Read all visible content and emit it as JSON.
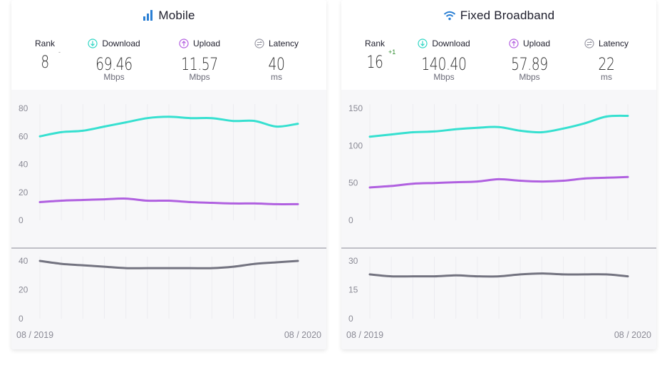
{
  "panels": [
    {
      "title": "Mobile",
      "title_icon": "signal-bars-icon",
      "accent": "#2a7fd4",
      "metrics": {
        "rank": {
          "label": "Rank",
          "value": "8",
          "change": "-",
          "change_color": "#999999"
        },
        "download": {
          "label": "Download",
          "value": "69.46",
          "unit": "Mbps",
          "icon": "download-arrow-icon",
          "color": "#2fd6c4"
        },
        "upload": {
          "label": "Upload",
          "value": "11.57",
          "unit": "Mbps",
          "icon": "upload-arrow-icon",
          "color": "#b35fe0"
        },
        "latency": {
          "label": "Latency",
          "value": "40",
          "unit": "ms",
          "icon": "latency-arrows-icon",
          "color": "#9a9aa6"
        }
      }
    },
    {
      "title": "Fixed Broadband",
      "title_icon": "wifi-icon",
      "accent": "#2a7fd4",
      "metrics": {
        "rank": {
          "label": "Rank",
          "value": "16",
          "change": "+1",
          "change_color": "#2e8b2e"
        },
        "download": {
          "label": "Download",
          "value": "140.40",
          "unit": "Mbps",
          "icon": "download-arrow-icon",
          "color": "#2fd6c4"
        },
        "upload": {
          "label": "Upload",
          "value": "57.89",
          "unit": "Mbps",
          "icon": "upload-arrow-icon",
          "color": "#b35fe0"
        },
        "latency": {
          "label": "Latency",
          "value": "22",
          "unit": "ms",
          "icon": "latency-arrows-icon",
          "color": "#9a9aa6"
        }
      }
    }
  ],
  "chart_data": [
    {
      "type": "line",
      "panel": "Mobile",
      "x_labels": [
        "08 / 2019",
        "08 / 2020"
      ],
      "speed": {
        "ylim": [
          0,
          80
        ],
        "yticks": [
          0,
          20,
          40,
          60,
          80
        ],
        "series": [
          {
            "color": "#36e0d0",
            "values": [
              60,
              63,
              64,
              67,
              70,
              73,
              74,
              73,
              73,
              71,
              71,
              67,
              69
            ]
          },
          {
            "color": "#b060e0",
            "values": [
              13,
              14,
              14.5,
              15,
              15.5,
              14,
              14,
              13,
              12.5,
              12,
              12,
              11.5,
              11.5
            ]
          }
        ]
      },
      "latency": {
        "ylim": [
          0,
          40
        ],
        "yticks": [
          0,
          20,
          40
        ],
        "series": [
          {
            "color": "#737380",
            "values": [
              40,
              38,
              37,
              36,
              35,
              35,
              35,
              35,
              35,
              36,
              38,
              39,
              40
            ]
          }
        ]
      }
    },
    {
      "type": "line",
      "panel": "Fixed Broadband",
      "x_labels": [
        "08 / 2019",
        "08 / 2020"
      ],
      "speed": {
        "ylim": [
          0,
          150
        ],
        "yticks": [
          0,
          50,
          100,
          150
        ],
        "series": [
          {
            "color": "#36e0d0",
            "values": [
              112,
              115,
              118,
              119,
              122,
              124,
              125,
              120,
              118,
              123,
              130,
              139,
              140
            ]
          },
          {
            "color": "#b060e0",
            "values": [
              44,
              46,
              49,
              50,
              51,
              52,
              55,
              53,
              52,
              53,
              56,
              57,
              58
            ]
          }
        ]
      },
      "latency": {
        "ylim": [
          0,
          30
        ],
        "yticks": [
          0,
          15,
          30
        ],
        "series": [
          {
            "color": "#737380",
            "values": [
              23,
              22,
              22,
              22,
              22.5,
              22,
              22,
              23,
              23.5,
              23,
              23,
              23,
              22
            ]
          }
        ]
      }
    }
  ]
}
